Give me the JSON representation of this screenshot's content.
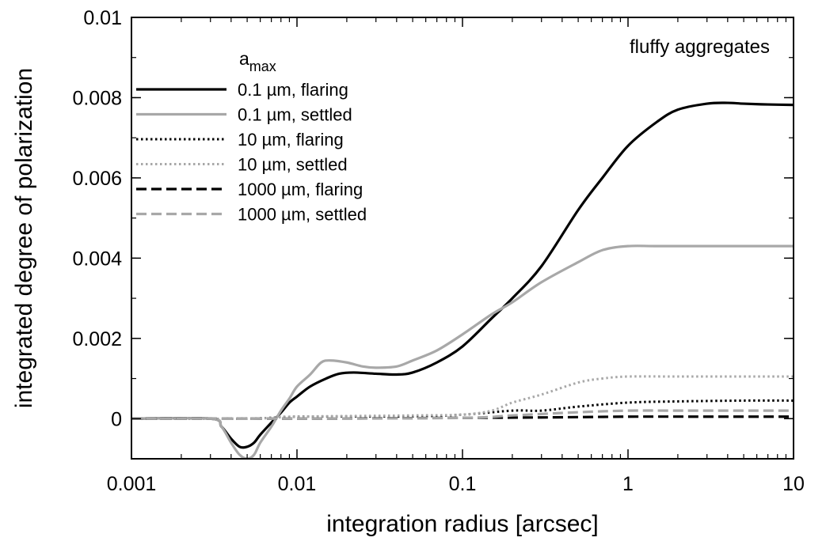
{
  "chart_data": {
    "type": "line",
    "title": "",
    "annotation": "fluffy aggregates",
    "xlabel": "integration radius [arcsec]",
    "ylabel": "integrated degree of polarization",
    "xscale": "log",
    "xlim": [
      0.001,
      10
    ],
    "ylim": [
      -0.001,
      0.01
    ],
    "x_ticks": [
      0.001,
      0.01,
      0.1,
      1,
      10
    ],
    "x_tick_labels": [
      "0.001",
      "0.01",
      "0.1",
      "1",
      "10"
    ],
    "y_ticks": [
      0,
      0.002,
      0.004,
      0.006,
      0.008,
      0.01
    ],
    "y_tick_labels": [
      "0",
      "0.002",
      "0.004",
      "0.006",
      "0.008",
      "0.01"
    ],
    "legend_title_main": "a",
    "legend_title_sub": "max",
    "legend_position": "top-left",
    "series": [
      {
        "name": "0.1 µm, flaring",
        "color": "#000000",
        "dash": "solid",
        "points": [
          [
            0.001,
            0
          ],
          [
            0.003,
            0
          ],
          [
            0.0035,
            -0.0002
          ],
          [
            0.004,
            -0.0005
          ],
          [
            0.0045,
            -0.0007
          ],
          [
            0.005,
            -0.0007
          ],
          [
            0.0055,
            -0.0006
          ],
          [
            0.006,
            -0.0004
          ],
          [
            0.007,
            -0.0001
          ],
          [
            0.008,
            0.00015
          ],
          [
            0.009,
            0.0004
          ],
          [
            0.01,
            0.00055
          ],
          [
            0.012,
            0.0008
          ],
          [
            0.015,
            0.001
          ],
          [
            0.018,
            0.00112
          ],
          [
            0.022,
            0.00115
          ],
          [
            0.03,
            0.00112
          ],
          [
            0.04,
            0.0011
          ],
          [
            0.05,
            0.00115
          ],
          [
            0.07,
            0.0014
          ],
          [
            0.1,
            0.0018
          ],
          [
            0.15,
            0.0025
          ],
          [
            0.2,
            0.003
          ],
          [
            0.3,
            0.0038
          ],
          [
            0.5,
            0.0052
          ],
          [
            0.7,
            0.006
          ],
          [
            1,
            0.0068
          ],
          [
            1.5,
            0.0074
          ],
          [
            2,
            0.0077
          ],
          [
            3,
            0.00785
          ],
          [
            4,
            0.00787
          ],
          [
            5,
            0.00785
          ],
          [
            7,
            0.00783
          ],
          [
            10,
            0.00782
          ]
        ]
      },
      {
        "name": "0.1 µm, settled",
        "color": "#a8a8a8",
        "dash": "solid",
        "points": [
          [
            0.001,
            0
          ],
          [
            0.003,
            0
          ],
          [
            0.0035,
            -0.0002
          ],
          [
            0.004,
            -0.0006
          ],
          [
            0.0045,
            -0.0009
          ],
          [
            0.005,
            -0.001
          ],
          [
            0.0055,
            -0.0009
          ],
          [
            0.006,
            -0.0006
          ],
          [
            0.007,
            -0.0002
          ],
          [
            0.008,
            0.0002
          ],
          [
            0.009,
            0.0005
          ],
          [
            0.01,
            0.0008
          ],
          [
            0.012,
            0.0011
          ],
          [
            0.014,
            0.0014
          ],
          [
            0.016,
            0.00145
          ],
          [
            0.02,
            0.0014
          ],
          [
            0.025,
            0.0013
          ],
          [
            0.03,
            0.00127
          ],
          [
            0.04,
            0.0013
          ],
          [
            0.05,
            0.00145
          ],
          [
            0.07,
            0.0017
          ],
          [
            0.1,
            0.0021
          ],
          [
            0.15,
            0.0026
          ],
          [
            0.2,
            0.0029
          ],
          [
            0.3,
            0.0034
          ],
          [
            0.5,
            0.0039
          ],
          [
            0.7,
            0.0042
          ],
          [
            1,
            0.0043
          ],
          [
            1.5,
            0.0043
          ],
          [
            3,
            0.0043
          ],
          [
            10,
            0.0043
          ]
        ]
      },
      {
        "name": "10 µm, flaring",
        "color": "#000000",
        "dash": "dotted",
        "points": [
          [
            0.001,
            0
          ],
          [
            0.005,
            0
          ],
          [
            0.01,
            5e-05
          ],
          [
            0.05,
            6e-05
          ],
          [
            0.1,
            0.0001
          ],
          [
            0.2,
            0.0002
          ],
          [
            0.3,
            0.0002
          ],
          [
            0.5,
            0.0003
          ],
          [
            1,
            0.0004
          ],
          [
            2,
            0.00043
          ],
          [
            5,
            0.00045
          ],
          [
            10,
            0.00045
          ]
        ]
      },
      {
        "name": "10 µm, settled",
        "color": "#a8a8a8",
        "dash": "dotted",
        "points": [
          [
            0.001,
            0
          ],
          [
            0.005,
            0
          ],
          [
            0.01,
            5e-05
          ],
          [
            0.05,
            8e-05
          ],
          [
            0.1,
            0.0001
          ],
          [
            0.15,
            0.0002
          ],
          [
            0.2,
            0.0004
          ],
          [
            0.3,
            0.0006
          ],
          [
            0.5,
            0.0009
          ],
          [
            0.7,
            0.001
          ],
          [
            1,
            0.00105
          ],
          [
            2,
            0.00105
          ],
          [
            10,
            0.00105
          ]
        ]
      },
      {
        "name": "1000 µm, flaring",
        "color": "#000000",
        "dash": "dashed",
        "points": [
          [
            0.001,
            0
          ],
          [
            0.01,
            0
          ],
          [
            0.1,
            2e-05
          ],
          [
            0.3,
            3e-05
          ],
          [
            1,
            5e-05
          ],
          [
            3,
            5e-05
          ],
          [
            10,
            5e-05
          ]
        ]
      },
      {
        "name": "1000 µm, settled",
        "color": "#a8a8a8",
        "dash": "dashed",
        "points": [
          [
            0.001,
            0
          ],
          [
            0.01,
            0
          ],
          [
            0.1,
            2e-05
          ],
          [
            0.2,
            8e-05
          ],
          [
            0.5,
            0.00016
          ],
          [
            1,
            0.0002
          ],
          [
            2,
            0.0002
          ],
          [
            10,
            0.0002
          ]
        ]
      }
    ]
  }
}
